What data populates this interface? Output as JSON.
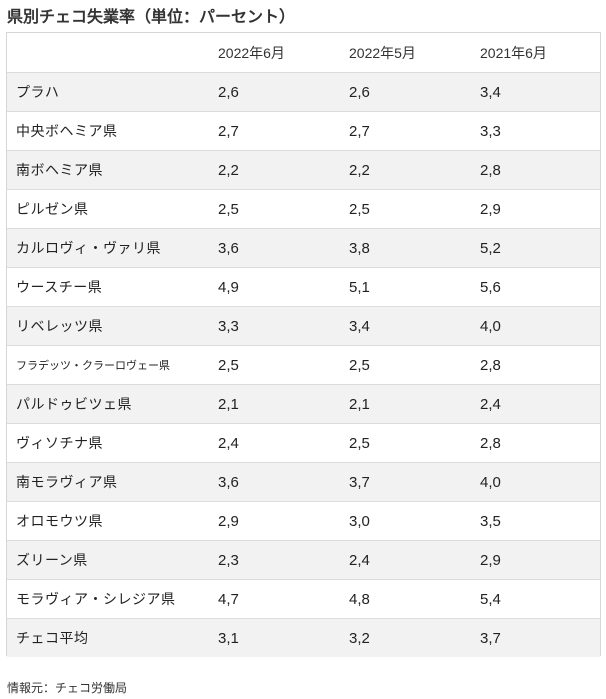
{
  "title": "県別チェコ失業率（単位：パーセント）",
  "table": {
    "headers": [
      "",
      "2022年6月",
      "2022年5月",
      "2021年6月"
    ],
    "rows": [
      {
        "region": "プラハ",
        "v2022_06": "2,6",
        "v2022_05": "2,6",
        "v2021_06": "3,4"
      },
      {
        "region": "中央ボヘミア県",
        "v2022_06": "2,7",
        "v2022_05": "2,7",
        "v2021_06": "3,3"
      },
      {
        "region": "南ボヘミア県",
        "v2022_06": "2,2",
        "v2022_05": "2,2",
        "v2021_06": "2,8"
      },
      {
        "region": "ピルゼン県",
        "v2022_06": "2,5",
        "v2022_05": "2,5",
        "v2021_06": "2,9"
      },
      {
        "region": "カルロヴィ・ヴァリ県",
        "v2022_06": "3,6",
        "v2022_05": "3,8",
        "v2021_06": "5,2"
      },
      {
        "region": "ウースチー県",
        "v2022_06": "4,9",
        "v2022_05": "5,1",
        "v2021_06": "5,6"
      },
      {
        "region": "リベレッツ県",
        "v2022_06": "3,3",
        "v2022_05": "3,4",
        "v2021_06": "4,0"
      },
      {
        "region": "フラデッツ・クラーロヴェー県",
        "v2022_06": "2,5",
        "v2022_05": "2,5",
        "v2021_06": "2,8"
      },
      {
        "region": "パルドゥビツェ県",
        "v2022_06": "2,1",
        "v2022_05": "2,1",
        "v2021_06": "2,4"
      },
      {
        "region": "ヴィソチナ県",
        "v2022_06": "2,4",
        "v2022_05": "2,5",
        "v2021_06": "2,8"
      },
      {
        "region": "南モラヴィア県",
        "v2022_06": "3,6",
        "v2022_05": "3,7",
        "v2021_06": "4,0"
      },
      {
        "region": "オロモウツ県",
        "v2022_06": "2,9",
        "v2022_05": "3,0",
        "v2021_06": "3,5"
      },
      {
        "region": "ズリーン県",
        "v2022_06": "2,3",
        "v2022_05": "2,4",
        "v2021_06": "2,9"
      },
      {
        "region": "モラヴィア・シレジア県",
        "v2022_06": "4,7",
        "v2022_05": "4,8",
        "v2021_06": "5,4"
      },
      {
        "region": "チェコ平均",
        "v2022_06": "3,1",
        "v2022_05": "3,2",
        "v2021_06": "3,7"
      }
    ]
  },
  "source": "情報元：チェコ労働局"
}
